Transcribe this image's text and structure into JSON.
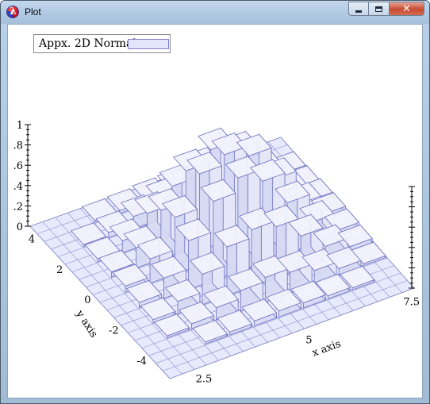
{
  "window": {
    "title": "Plot",
    "icon": "racket-lambda-icon",
    "buttons": {
      "minimize": "minimize",
      "maximize": "maximize",
      "close": "✕"
    }
  },
  "legend": {
    "label": "Appx. 2D Normal",
    "swatch_color": "#e3e6fb"
  },
  "chart_data": {
    "type": "3d-histogram",
    "legend": [
      "Appx. 2D Normal"
    ],
    "xlabel": "x axis",
    "ylabel": "y axis",
    "x_ticks": [
      "2.5",
      "5",
      "7.5"
    ],
    "y_ticks": [
      "4",
      "2",
      "0",
      "-2",
      "-4"
    ],
    "z_ticks": [
      "1",
      ".8",
      ".6",
      ".4",
      ".2",
      "0"
    ],
    "zlim": [
      0,
      1
    ],
    "heights": [
      [
        0.0,
        0.0,
        0.0,
        0.0,
        0.0,
        0.0,
        0.0,
        0.0,
        0.0,
        0.0
      ],
      [
        0.0,
        0.0,
        0.02,
        0.03,
        0.05,
        0.06,
        0.05,
        0.03,
        0.02,
        0.0
      ],
      [
        0.0,
        0.02,
        0.05,
        0.12,
        0.2,
        0.24,
        0.2,
        0.13,
        0.06,
        0.02
      ],
      [
        0.0,
        0.03,
        0.12,
        0.3,
        0.48,
        0.56,
        0.5,
        0.32,
        0.13,
        0.04
      ],
      [
        0.0,
        0.05,
        0.2,
        0.48,
        0.78,
        0.92,
        0.8,
        0.5,
        0.22,
        0.05
      ],
      [
        0.0,
        0.06,
        0.24,
        0.56,
        0.9,
        1.0,
        0.9,
        0.58,
        0.25,
        0.06
      ],
      [
        0.0,
        0.05,
        0.2,
        0.48,
        0.78,
        0.9,
        0.78,
        0.5,
        0.21,
        0.05
      ],
      [
        0.0,
        0.03,
        0.12,
        0.3,
        0.48,
        0.56,
        0.48,
        0.31,
        0.12,
        0.03
      ],
      [
        0.0,
        0.02,
        0.05,
        0.12,
        0.2,
        0.24,
        0.2,
        0.12,
        0.05,
        0.02
      ],
      [
        0.0,
        0.0,
        0.02,
        0.03,
        0.05,
        0.06,
        0.05,
        0.03,
        0.02,
        0.0
      ]
    ],
    "grid": true,
    "colors": {
      "surface": "#e3e6fb",
      "edge": "#6d6fbf"
    }
  }
}
